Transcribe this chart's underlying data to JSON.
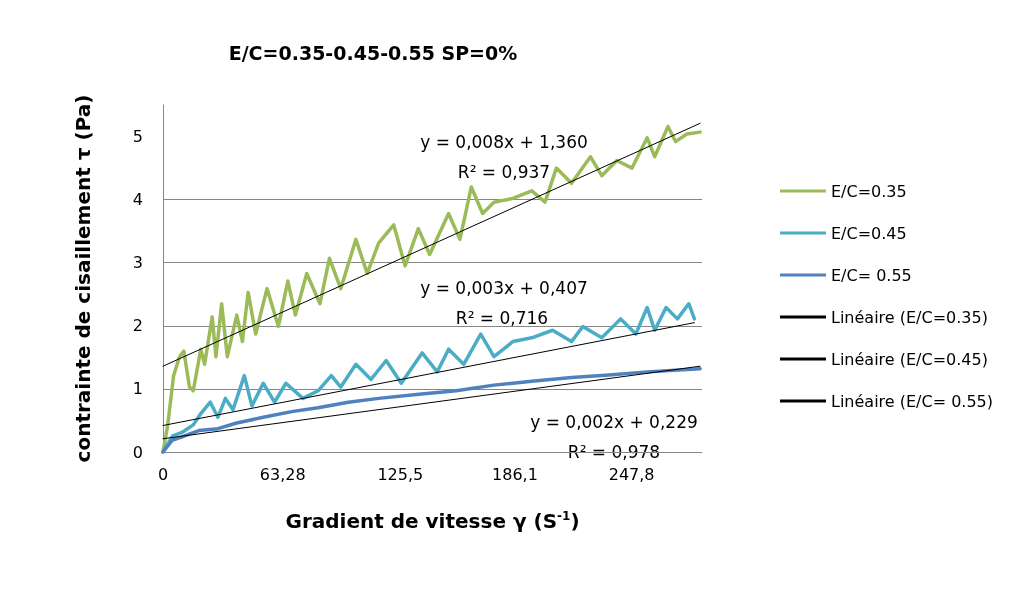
{
  "chart_data": {
    "type": "line",
    "title": "E/C=0.35-0.45-0.55 SP=0%",
    "xlabel": "Gradient de vitesse γ (S$^{-1}$)",
    "ylabel": "contrainte de cisaillement τ (Pa)",
    "xlim": [
      0,
      285
    ],
    "xticks": [
      0,
      {
        "value": 63.28,
        "label": "63,28"
      },
      {
        "value": 125.5,
        "label": "125,5"
      },
      {
        "value": 186.1,
        "label": "186,1"
      },
      {
        "value": 247.8,
        "label": "247,8"
      }
    ],
    "ylim": [
      0,
      5.5
    ],
    "yticks": [
      0,
      1,
      2,
      3,
      4,
      5
    ],
    "grid": "y",
    "legend": "right",
    "marker": "none",
    "line_style": "solid",
    "series": [
      {
        "name": "E/C=0.35",
        "color": "#9bbb59",
        "x": [
          0,
          2.5,
          5.6,
          8.6,
          11,
          14,
          16,
          20,
          22,
          26,
          28,
          31,
          34,
          39,
          42,
          45,
          49,
          55,
          61,
          66,
          70,
          76,
          83,
          88,
          94,
          102,
          108,
          114,
          122,
          128,
          135,
          141,
          151,
          157,
          163,
          169,
          175,
          185,
          195,
          202,
          208,
          216,
          226,
          232,
          240,
          248,
          256,
          260,
          267,
          271,
          277,
          284
        ],
        "values": [
          0,
          0.43,
          1.21,
          1.5,
          1.6,
          1.03,
          0.97,
          1.63,
          1.39,
          2.14,
          1.51,
          2.35,
          1.51,
          2.17,
          1.75,
          2.53,
          1.87,
          2.59,
          1.99,
          2.71,
          2.17,
          2.83,
          2.35,
          3.07,
          2.59,
          3.37,
          2.83,
          3.31,
          3.6,
          2.95,
          3.54,
          3.13,
          3.78,
          3.37,
          4.2,
          3.78,
          3.96,
          4.02,
          4.14,
          3.96,
          4.5,
          4.26,
          4.68,
          4.38,
          4.62,
          4.5,
          4.98,
          4.68,
          5.16,
          4.92,
          5.04,
          5.07
        ]
      },
      {
        "name": "E/C=0.45",
        "color": "#4bacc6",
        "x": [
          0,
          5,
          10,
          16,
          20,
          25,
          29,
          33,
          37,
          43,
          47,
          53,
          59,
          65,
          74,
          82,
          89,
          94,
          102,
          110,
          118,
          126,
          137,
          145,
          151,
          159,
          168,
          175,
          185,
          195,
          206,
          216,
          222,
          232,
          242,
          250,
          256,
          260,
          266,
          272,
          278,
          281
        ],
        "values": [
          0,
          0.25,
          0.31,
          0.43,
          0.61,
          0.79,
          0.55,
          0.85,
          0.67,
          1.21,
          0.73,
          1.09,
          0.79,
          1.09,
          0.85,
          0.97,
          1.21,
          1.03,
          1.39,
          1.15,
          1.45,
          1.09,
          1.57,
          1.27,
          1.63,
          1.39,
          1.87,
          1.51,
          1.75,
          1.81,
          1.93,
          1.75,
          1.99,
          1.81,
          2.11,
          1.87,
          2.29,
          1.93,
          2.29,
          2.11,
          2.35,
          2.11
        ]
      },
      {
        "name": "E/C= 0.55",
        "color": "#4f81bd",
        "x": [
          0,
          5,
          11,
          19,
          29,
          39,
          53,
          68,
          82,
          98,
          114,
          134,
          155,
          175,
          195,
          216,
          236,
          256,
          284
        ],
        "values": [
          0,
          0.19,
          0.25,
          0.34,
          0.37,
          0.46,
          0.55,
          0.64,
          0.7,
          0.79,
          0.85,
          0.91,
          0.97,
          1.06,
          1.12,
          1.18,
          1.22,
          1.27,
          1.32
        ]
      },
      {
        "name": "Linéaire (E/C=0.35)",
        "color": "#000000",
        "x": [
          0,
          284
        ],
        "values": [
          1.36,
          5.21
        ]
      },
      {
        "name": "Linéaire (E/C=0.45)",
        "color": "#000000",
        "x": [
          0,
          281
        ],
        "values": [
          0.42,
          2.05
        ]
      },
      {
        "name": "Linéaire (E/C= 0.55)",
        "color": "#000000",
        "x": [
          0,
          284
        ],
        "values": [
          0.21,
          1.36
        ]
      }
    ],
    "annotations": [
      "y = 0,008x + 1,360",
      "R² = 0,937",
      "y = 0,003x + 0,407",
      "R² = 0,716",
      "y = 0,002x + 0,229",
      "R² = 0,978"
    ]
  }
}
